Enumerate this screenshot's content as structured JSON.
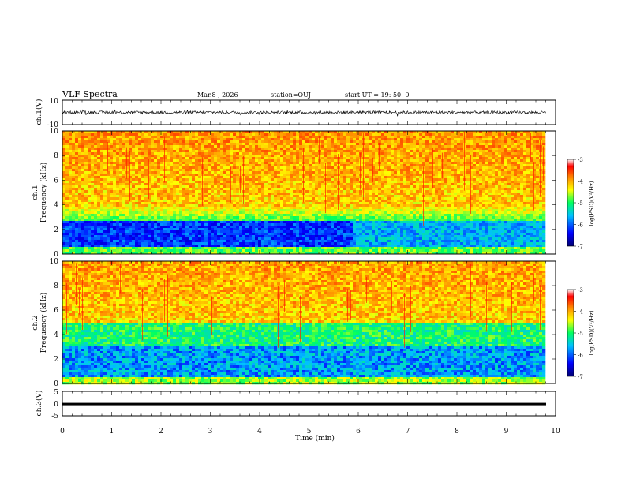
{
  "header": {
    "title": "VLF Spectra",
    "date": "Mar.8 , 2026",
    "station": "station=OUJ",
    "start": "start UT =  19: 50: 0"
  },
  "colors": {
    "colormap": [
      "#000070",
      "#0000ff",
      "#00c0ff",
      "#00ff60",
      "#ffff00",
      "#ff8000",
      "#ff0000",
      "#ffffff"
    ],
    "waveform": "#000000"
  },
  "chart_data": [
    {
      "id": "ch1-wave",
      "type": "line",
      "ylabel": "ch.1(V)",
      "ylim": [
        -10,
        10
      ],
      "yticks": [
        "10",
        "-10"
      ],
      "xlim": [
        0,
        10
      ],
      "baseline": 0,
      "note_amplitude": 1.2
    },
    {
      "id": "ch1-spec",
      "type": "heatmap",
      "ylabel_top": "ch.1",
      "ylabel": "Frequency (kHz)",
      "ylim": [
        0,
        10
      ],
      "yticks": [
        "0",
        "2",
        "4",
        "6",
        "8",
        "10"
      ],
      "xlim": [
        0,
        9.8
      ],
      "colorbar_label": "log(PSD)(V²/Hz)",
      "colorbar_ticks": [
        "-3",
        "-4",
        "-5",
        "-6",
        "-7"
      ],
      "clim": [
        -7,
        -3
      ]
    },
    {
      "id": "ch2-spec",
      "type": "heatmap",
      "ylabel_top": "ch.2",
      "ylabel": "Frequency (kHz)",
      "ylim": [
        0,
        10
      ],
      "yticks": [
        "0",
        "2",
        "4",
        "6",
        "8",
        "10"
      ],
      "xlim": [
        0,
        9.8
      ],
      "colorbar_label": "log(PSD)(V²/Hz)",
      "colorbar_ticks": [
        "-3",
        "-4",
        "-5",
        "-6",
        "-7"
      ],
      "clim": [
        -7,
        -3
      ]
    },
    {
      "id": "ch3-wave",
      "type": "line",
      "ylabel": "ch.3(V)",
      "ylim": [
        -5,
        5
      ],
      "yticks": [
        "5",
        "0",
        "-5"
      ],
      "xlim": [
        0,
        10
      ],
      "baseline": -0.2
    }
  ],
  "xaxis": {
    "label": "Time (min)",
    "ticks": [
      "0",
      "1",
      "2",
      "3",
      "4",
      "5",
      "6",
      "7",
      "8",
      "9",
      "10"
    ]
  }
}
